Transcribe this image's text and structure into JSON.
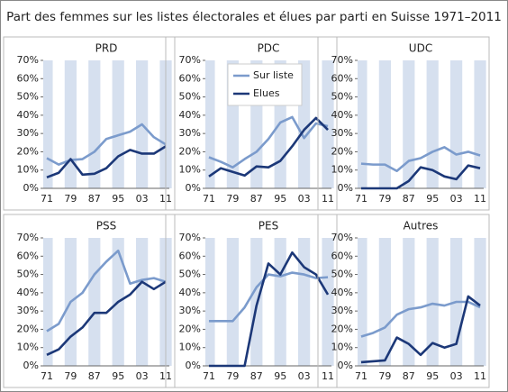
{
  "title": "Part des femmes sur les listes électorales et élues par parti en Suisse 1971–2011",
  "chart_data": [
    {
      "type": "line",
      "title": "PRD",
      "categories": [
        "71",
        null,
        "79",
        null,
        "87",
        null,
        "95",
        null,
        "03",
        null,
        "11"
      ],
      "series": [
        {
          "name": "Sur liste",
          "color": "#7b9bcc",
          "values": [
            16.5,
            13,
            15.5,
            16,
            20,
            27,
            29,
            31,
            35,
            28,
            24
          ]
        },
        {
          "name": "Elues",
          "color": "#1c3878",
          "values": [
            6,
            8.5,
            16,
            7.5,
            8,
            11,
            17.5,
            21,
            19,
            19,
            23
          ]
        }
      ],
      "ylim": [
        0,
        70
      ],
      "yticks": [
        {
          "value": 0,
          "label": "0%"
        },
        {
          "value": 10,
          "label": "10%"
        },
        {
          "value": 20,
          "label": "20%"
        },
        {
          "value": 30,
          "label": "30%"
        },
        {
          "value": 40,
          "label": "40%"
        },
        {
          "value": 50,
          "label": "50%"
        },
        {
          "value": 60,
          "label": "60%"
        },
        {
          "value": 70,
          "label": "70%"
        }
      ]
    },
    {
      "type": "line",
      "title": "PDC",
      "categories": [
        "71",
        null,
        "79",
        null,
        "87",
        null,
        "95",
        null,
        "03",
        null,
        "11"
      ],
      "series": [
        {
          "name": "Sur liste",
          "color": "#7b9bcc",
          "values": [
            17,
            14.5,
            11.5,
            16,
            20,
            27,
            36,
            39,
            27.5,
            35.5,
            34
          ]
        },
        {
          "name": "Elues",
          "color": "#1c3878",
          "values": [
            6.5,
            11,
            9,
            7,
            12,
            11.5,
            15,
            23,
            32,
            38.5,
            32
          ]
        }
      ],
      "ylim": [
        0,
        70
      ],
      "yticks": [
        {
          "value": 0,
          "label": "0%"
        },
        {
          "value": 10,
          "label": "10%"
        },
        {
          "value": 20,
          "label": "20%"
        },
        {
          "value": 30,
          "label": "30%"
        },
        {
          "value": 40,
          "label": "40%"
        },
        {
          "value": 50,
          "label": "50%"
        },
        {
          "value": 60,
          "label": "60%"
        },
        {
          "value": 70,
          "label": "70%"
        }
      ],
      "legend": "top-left"
    },
    {
      "type": "line",
      "title": "UDC",
      "categories": [
        "71",
        null,
        "79",
        null,
        "87",
        null,
        "95",
        null,
        "03",
        null,
        "11"
      ],
      "series": [
        {
          "name": "Sur liste",
          "color": "#7b9bcc",
          "values": [
            13.5,
            13,
            13,
            9.5,
            15,
            16.5,
            20,
            22.5,
            18.5,
            20,
            18
          ]
        },
        {
          "name": "Elues",
          "color": "#1c3878",
          "values": [
            0,
            0,
            0,
            0,
            4,
            11.5,
            10,
            6.5,
            5,
            12.5,
            11
          ]
        }
      ],
      "ylim": [
        0,
        70
      ],
      "yticks": [
        {
          "value": 0,
          "label": "0%"
        },
        {
          "value": 10,
          "label": "10%"
        },
        {
          "value": 20,
          "label": "20%"
        },
        {
          "value": 30,
          "label": "30%"
        },
        {
          "value": 40,
          "label": "40%"
        },
        {
          "value": 50,
          "label": "50%"
        },
        {
          "value": 60,
          "label": "60%"
        },
        {
          "value": 70,
          "label": "70%"
        }
      ]
    },
    {
      "type": "line",
      "title": "PSS",
      "categories": [
        "71",
        null,
        "79",
        null,
        "87",
        null,
        "95",
        null,
        "03",
        null,
        "11"
      ],
      "series": [
        {
          "name": "Sur liste",
          "color": "#7b9bcc",
          "values": [
            19,
            23,
            35,
            40,
            50,
            57,
            63,
            45,
            47,
            48,
            46
          ]
        },
        {
          "name": "Elues",
          "color": "#1c3878",
          "values": [
            6,
            9,
            16,
            21,
            29,
            29,
            35,
            39,
            46,
            42,
            46
          ]
        }
      ],
      "ylim": [
        0,
        70
      ],
      "yticks": [
        {
          "value": 0,
          "label": "0%"
        },
        {
          "value": 10,
          "label": "10%"
        },
        {
          "value": 20,
          "label": "20%"
        },
        {
          "value": 30,
          "label": "30%"
        },
        {
          "value": 40,
          "label": "40%"
        },
        {
          "value": 50,
          "label": "50%"
        },
        {
          "value": 60,
          "label": "60%"
        },
        {
          "value": 70,
          "label": "70%"
        }
      ]
    },
    {
      "type": "line",
      "title": "PES",
      "categories": [
        "71",
        null,
        "79",
        null,
        "87",
        null,
        "95",
        null,
        "03",
        null,
        "11"
      ],
      "series": [
        {
          "name": "Sur liste",
          "color": "#7b9bcc",
          "values": [
            24.5,
            24.5,
            24.5,
            32,
            43,
            50,
            49,
            51,
            50,
            48,
            48.5
          ]
        },
        {
          "name": "Elues",
          "color": "#1c3878",
          "values": [
            0,
            0,
            0,
            0,
            33,
            56,
            50,
            62,
            54,
            50,
            39
          ]
        }
      ],
      "ylim": [
        0,
        70
      ],
      "yticks": [
        {
          "value": 0,
          "label": "0%"
        },
        {
          "value": 10,
          "label": "10%"
        },
        {
          "value": 20,
          "label": "20%"
        },
        {
          "value": 30,
          "label": "30%"
        },
        {
          "value": 40,
          "label": "40%"
        },
        {
          "value": 50,
          "label": "50%"
        },
        {
          "value": 60,
          "label": "60%"
        },
        {
          "value": 70,
          "label": "70%"
        }
      ]
    },
    {
      "type": "line",
      "title": "Autres",
      "categories": [
        "71",
        null,
        "79",
        null,
        "87",
        null,
        "95",
        null,
        "03",
        null,
        "11"
      ],
      "series": [
        {
          "name": "Sur liste",
          "color": "#7b9bcc",
          "values": [
            16,
            18,
            21,
            28,
            31,
            32,
            34,
            33,
            35,
            35,
            32
          ]
        },
        {
          "name": "Elues",
          "color": "#1c3878",
          "values": [
            2,
            2.5,
            3,
            15.5,
            12,
            6,
            12.5,
            10,
            12,
            38,
            33
          ]
        }
      ],
      "ylim": [
        0,
        70
      ],
      "yticks": [
        {
          "value": 0,
          "label": "0%"
        },
        {
          "value": 10,
          "label": "10%"
        },
        {
          "value": 20,
          "label": "20%"
        },
        {
          "value": 30,
          "label": "30%"
        },
        {
          "value": 40,
          "label": "40%"
        },
        {
          "value": 50,
          "label": "50%"
        },
        {
          "value": 60,
          "label": "60%"
        },
        {
          "value": 70,
          "label": "70%"
        }
      ]
    }
  ]
}
